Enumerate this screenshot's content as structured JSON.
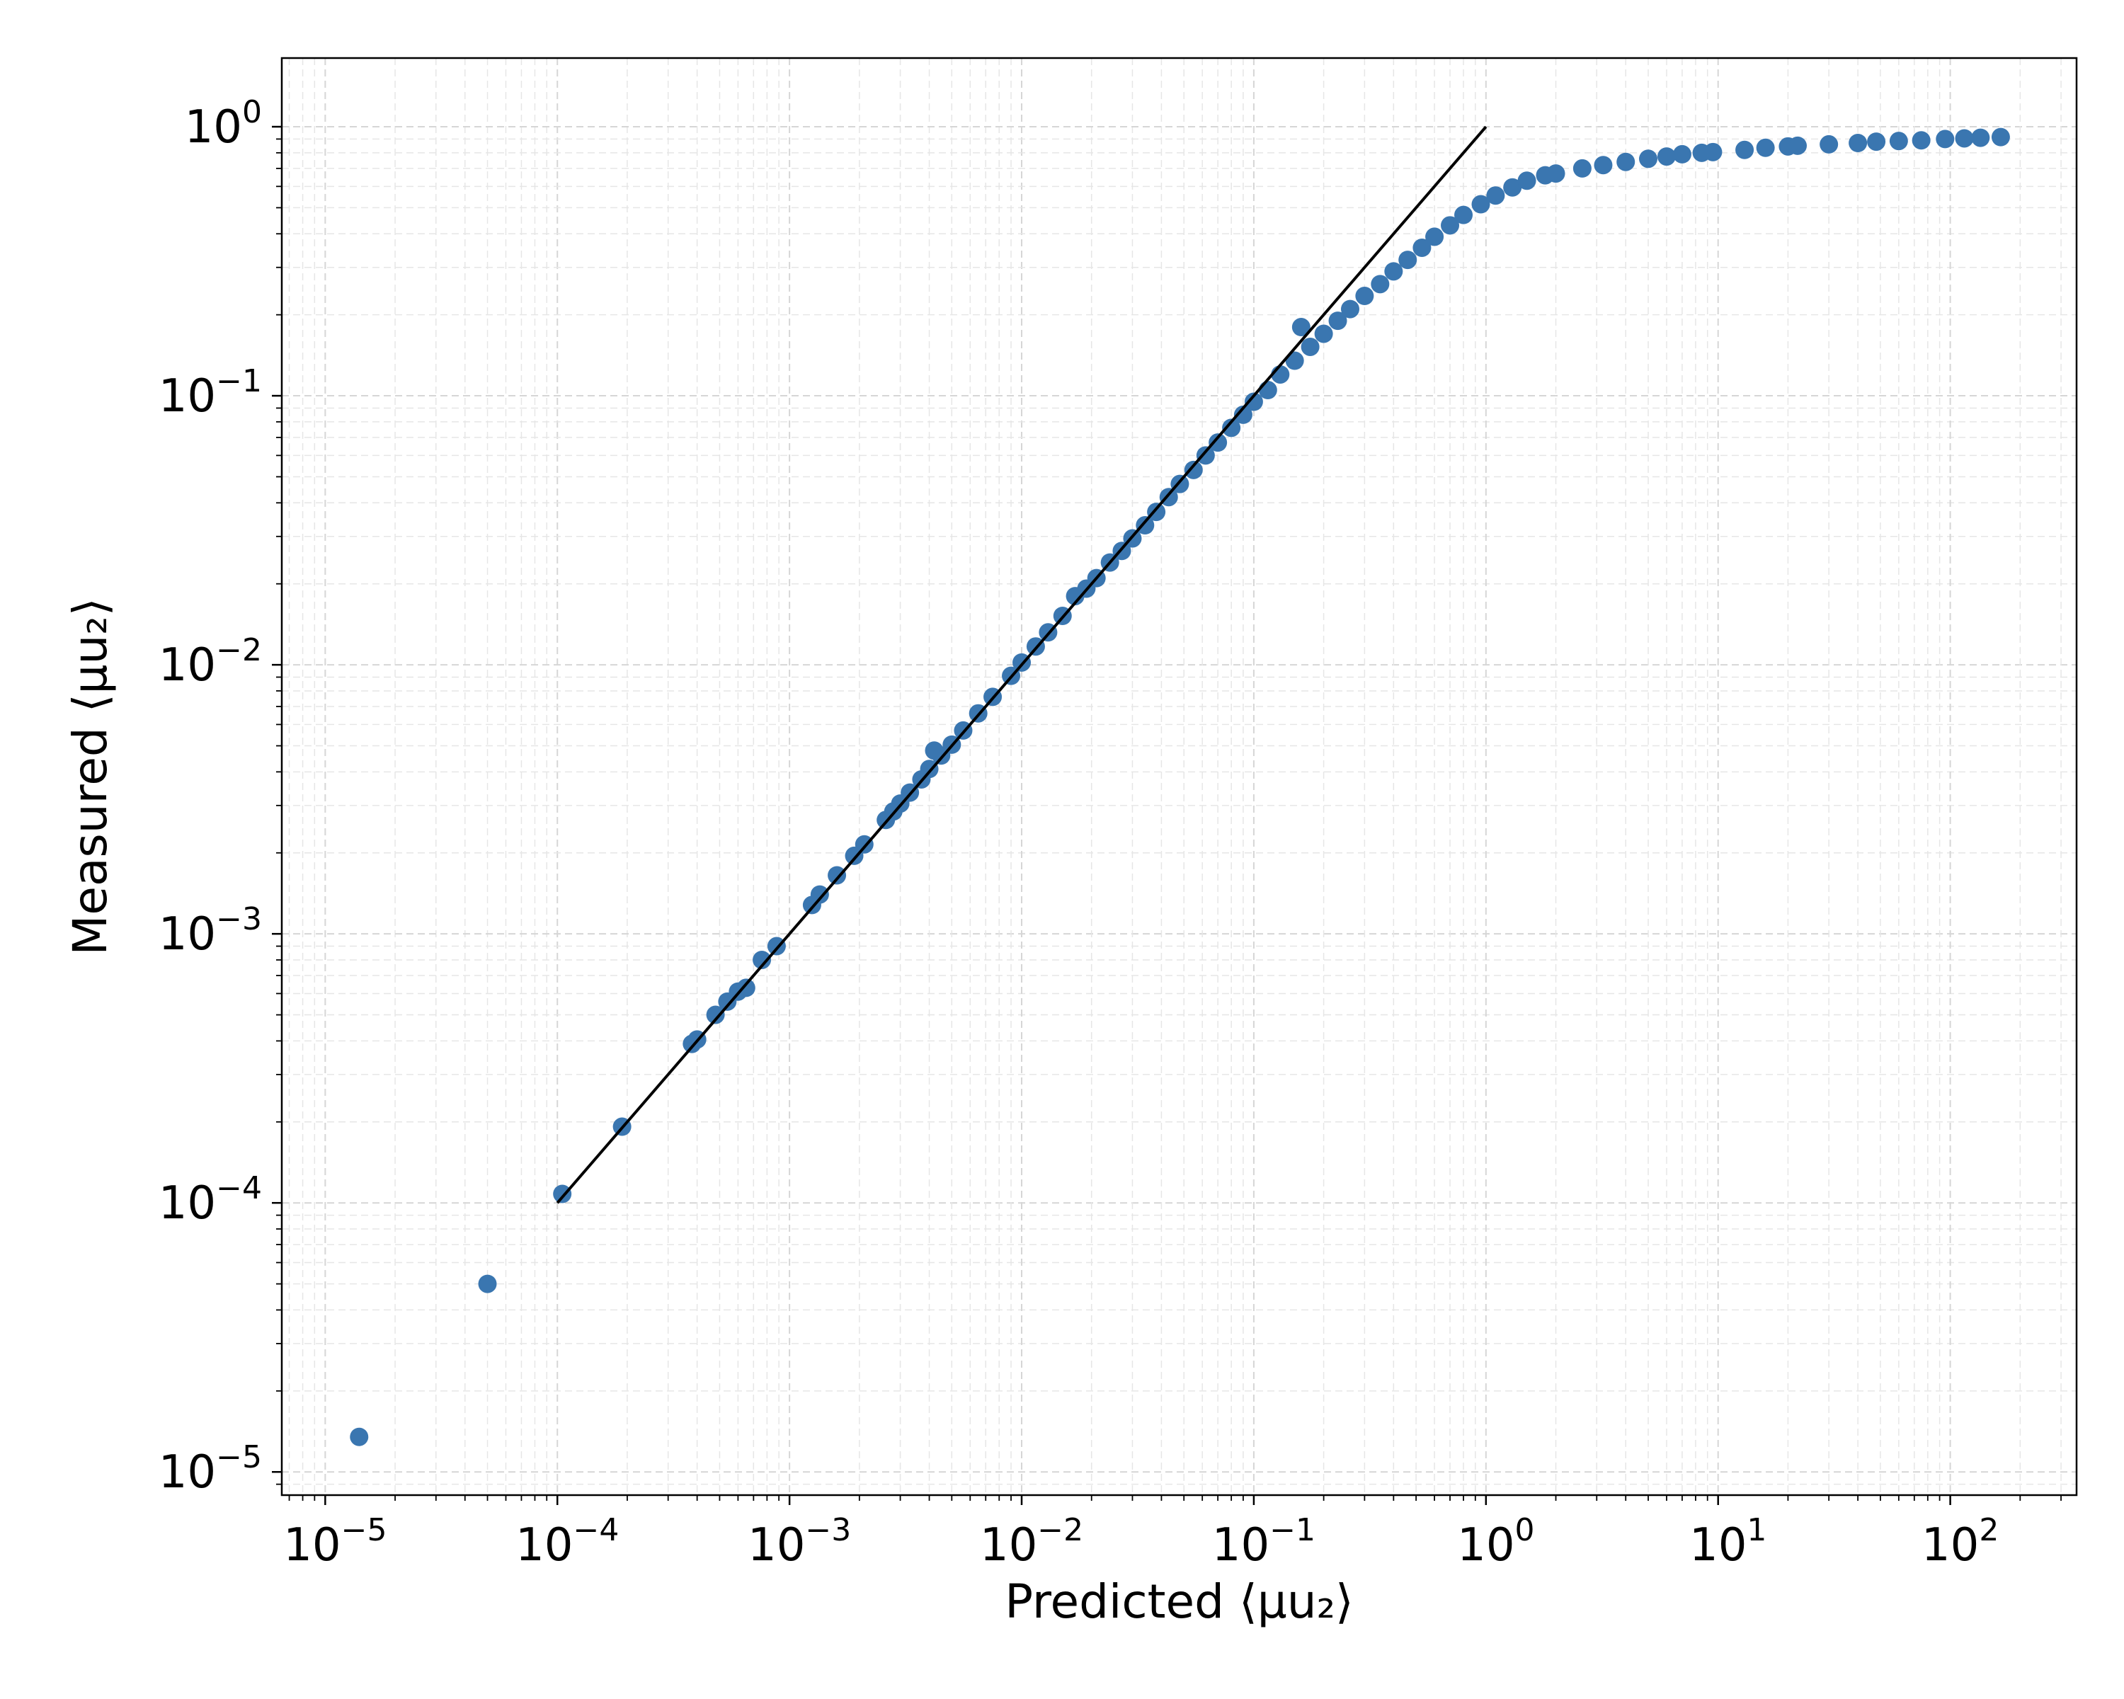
{
  "chart_data": {
    "type": "scatter",
    "title": "",
    "xlabel": "Predicted ⟨μu₂⟩",
    "ylabel": "Measured ⟨μu₂⟩",
    "xscale": "log",
    "yscale": "log",
    "xlim": [
      6.5e-06,
      350
    ],
    "ylim": [
      8.2e-06,
      1.8
    ],
    "grid": true,
    "legend": "none",
    "xticks": [
      {
        "value": 1e-05,
        "base": "10",
        "exp": "−5"
      },
      {
        "value": 0.0001,
        "base": "10",
        "exp": "−4"
      },
      {
        "value": 0.001,
        "base": "10",
        "exp": "−3"
      },
      {
        "value": 0.01,
        "base": "10",
        "exp": "−2"
      },
      {
        "value": 0.1,
        "base": "10",
        "exp": "−1"
      },
      {
        "value": 1,
        "base": "10",
        "exp": "0"
      },
      {
        "value": 10,
        "base": "10",
        "exp": "1"
      },
      {
        "value": 100,
        "base": "10",
        "exp": "2"
      }
    ],
    "yticks": [
      {
        "value": 1e-05,
        "base": "10",
        "exp": "−5"
      },
      {
        "value": 0.0001,
        "base": "10",
        "exp": "−4"
      },
      {
        "value": 0.001,
        "base": "10",
        "exp": "−3"
      },
      {
        "value": 0.01,
        "base": "10",
        "exp": "−2"
      },
      {
        "value": 0.1,
        "base": "10",
        "exp": "−1"
      },
      {
        "value": 1,
        "base": "10",
        "exp": "0"
      }
    ],
    "series": [
      {
        "type": "scatter",
        "color": "#3a76b0",
        "points": [
          [
            1.4e-05,
            1.35e-05
          ],
          [
            5e-05,
            5e-05
          ],
          [
            0.000105,
            0.000108
          ],
          [
            0.00019,
            0.000192
          ],
          [
            0.00038,
            0.00039
          ],
          [
            0.0004,
            0.000405
          ],
          [
            0.00048,
            0.0005
          ],
          [
            0.00054,
            0.00056
          ],
          [
            0.0006,
            0.00061
          ],
          [
            0.00065,
            0.00063
          ],
          [
            0.00076,
            0.0008
          ],
          [
            0.00088,
            0.0009
          ],
          [
            0.00125,
            0.00128
          ],
          [
            0.00135,
            0.0014
          ],
          [
            0.0016,
            0.00165
          ],
          [
            0.0019,
            0.00195
          ],
          [
            0.0021,
            0.00215
          ],
          [
            0.0026,
            0.00265
          ],
          [
            0.0028,
            0.00285
          ],
          [
            0.003,
            0.00305
          ],
          [
            0.0033,
            0.00335
          ],
          [
            0.0037,
            0.00375
          ],
          [
            0.004,
            0.0041
          ],
          [
            0.0042,
            0.0048
          ],
          [
            0.0045,
            0.0046
          ],
          [
            0.005,
            0.00505
          ],
          [
            0.0056,
            0.0057
          ],
          [
            0.0065,
            0.0066
          ],
          [
            0.0075,
            0.0076
          ],
          [
            0.009,
            0.0091
          ],
          [
            0.01,
            0.0102
          ],
          [
            0.0115,
            0.0117
          ],
          [
            0.013,
            0.0132
          ],
          [
            0.015,
            0.0152
          ],
          [
            0.017,
            0.018
          ],
          [
            0.019,
            0.0192
          ],
          [
            0.021,
            0.021
          ],
          [
            0.024,
            0.024
          ],
          [
            0.027,
            0.0265
          ],
          [
            0.03,
            0.0295
          ],
          [
            0.034,
            0.033
          ],
          [
            0.038,
            0.037
          ],
          [
            0.043,
            0.042
          ],
          [
            0.048,
            0.047
          ],
          [
            0.055,
            0.053
          ],
          [
            0.062,
            0.06
          ],
          [
            0.07,
            0.067
          ],
          [
            0.08,
            0.076
          ],
          [
            0.09,
            0.085
          ],
          [
            0.1,
            0.095
          ],
          [
            0.115,
            0.105
          ],
          [
            0.13,
            0.12
          ],
          [
            0.15,
            0.135
          ],
          [
            0.16,
            0.18
          ],
          [
            0.175,
            0.152
          ],
          [
            0.2,
            0.17
          ],
          [
            0.23,
            0.19
          ],
          [
            0.26,
            0.21
          ],
          [
            0.3,
            0.235
          ],
          [
            0.35,
            0.26
          ],
          [
            0.4,
            0.29
          ],
          [
            0.46,
            0.32
          ],
          [
            0.53,
            0.355
          ],
          [
            0.6,
            0.39
          ],
          [
            0.7,
            0.43
          ],
          [
            0.8,
            0.47
          ],
          [
            0.95,
            0.515
          ],
          [
            1.1,
            0.555
          ],
          [
            1.3,
            0.595
          ],
          [
            1.5,
            0.63
          ],
          [
            1.8,
            0.66
          ],
          [
            2.0,
            0.67
          ],
          [
            2.6,
            0.7
          ],
          [
            3.2,
            0.72
          ],
          [
            4.0,
            0.74
          ],
          [
            5.0,
            0.76
          ],
          [
            6.0,
            0.775
          ],
          [
            7.0,
            0.79
          ],
          [
            8.5,
            0.8
          ],
          [
            9.5,
            0.805
          ],
          [
            13,
            0.82
          ],
          [
            16,
            0.835
          ],
          [
            20,
            0.845
          ],
          [
            22,
            0.85
          ],
          [
            30,
            0.86
          ],
          [
            40,
            0.87
          ],
          [
            48,
            0.88
          ],
          [
            60,
            0.885
          ],
          [
            75,
            0.89
          ],
          [
            95,
            0.9
          ],
          [
            115,
            0.905
          ],
          [
            135,
            0.91
          ],
          [
            165,
            0.915
          ]
        ]
      },
      {
        "type": "line",
        "color": "#000000",
        "points": [
          [
            0.0001,
            0.0001
          ],
          [
            1,
            1
          ]
        ]
      }
    ]
  }
}
